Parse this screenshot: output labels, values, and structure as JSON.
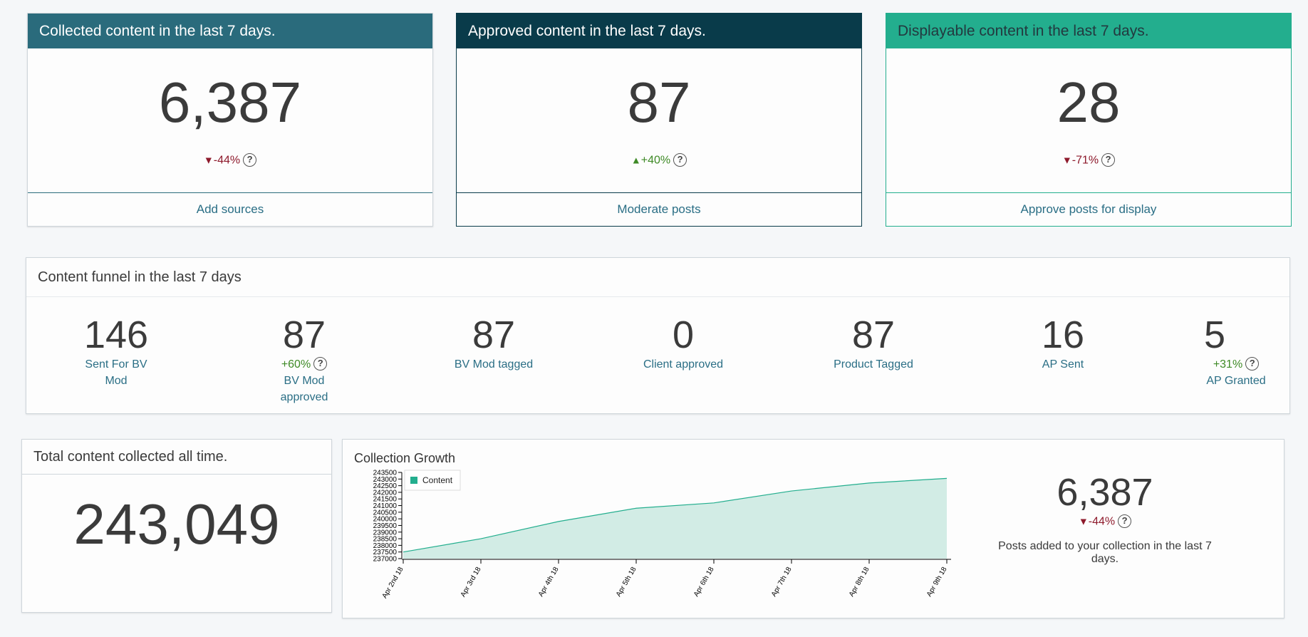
{
  "kpis": [
    {
      "title": "Collected content in the last 7 days.",
      "value": "6,387",
      "arrow": "▼",
      "delta": "-44%",
      "action": "Add sources"
    },
    {
      "title": "Approved content in the last 7 days.",
      "value": "87",
      "arrow": "▲",
      "delta": "+40%",
      "action": "Moderate posts"
    },
    {
      "title": "Displayable content in the last 7 days.",
      "value": "28",
      "arrow": "▼",
      "delta": "-71%",
      "action": "Approve posts for display"
    }
  ],
  "help_glyph": "?",
  "funnel": {
    "title": "Content funnel in the last 7 days",
    "items": [
      {
        "value": "146",
        "label": "Sent For BV Mod"
      },
      {
        "value": "87",
        "delta": "+60%",
        "label": "BV Mod approved"
      },
      {
        "value": "87",
        "label": "BV Mod tagged"
      },
      {
        "value": "0",
        "label": "Client approved"
      },
      {
        "value": "87",
        "label": "Product Tagged"
      },
      {
        "value": "16",
        "label": "AP Sent"
      },
      {
        "value": "5",
        "delta": "+31%",
        "label": "AP Granted"
      }
    ]
  },
  "total": {
    "title": "Total content collected all time.",
    "value": "243,049"
  },
  "growth": {
    "title": "Collection Growth",
    "stat_value": "6,387",
    "stat_arrow": "▼",
    "stat_delta": "-44%",
    "caption": "Posts added to your collection in the last 7 days."
  },
  "colors": {
    "up": "#3e8a26",
    "down": "#8e1a2c",
    "area_fill": "#d2ece5",
    "area_line": "#23ae8e"
  },
  "chart_data": {
    "type": "area",
    "title": "Collection Growth",
    "x": [
      "Apr 2nd 18",
      "Apr 3rd 18",
      "Apr 4th 18",
      "Apr 5th 18",
      "Apr 6th 18",
      "Apr 7th 18",
      "Apr 8th 18",
      "Apr 9th 18"
    ],
    "series": [
      {
        "name": "Content",
        "values": [
          237500,
          238500,
          239800,
          240800,
          241200,
          242100,
          242700,
          243049
        ]
      }
    ],
    "ylim": [
      237000,
      243500
    ],
    "yticks": [
      237000,
      237500,
      238000,
      238500,
      239000,
      239500,
      240000,
      240500,
      241000,
      241500,
      242000,
      242500,
      243000,
      243500
    ],
    "legend": "top-left",
    "grid": false
  }
}
